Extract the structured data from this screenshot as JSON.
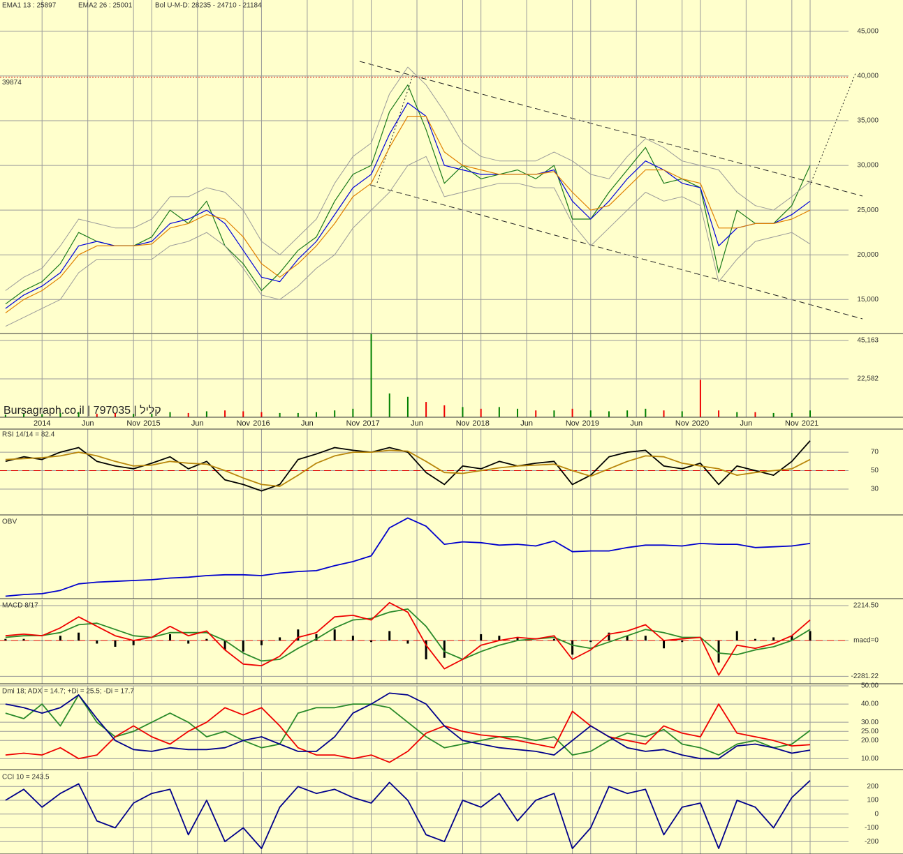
{
  "chart_data": [
    {
      "type": "line",
      "x": [
        -4,
        -2,
        0,
        2,
        4,
        6,
        8,
        10,
        12,
        14,
        16,
        18,
        20,
        22,
        24,
        26,
        28,
        30,
        32,
        34,
        36,
        38,
        40,
        42,
        44,
        46,
        48,
        50,
        52,
        54,
        56,
        58,
        60,
        62,
        64,
        66,
        68,
        70,
        72,
        74,
        76,
        78,
        80,
        82,
        84
      ],
      "xlim": [
        -4.6,
        88.2
      ],
      "xticks": [
        {
          "value": 0,
          "label": "2014"
        },
        {
          "value": 5,
          "label": "Jun"
        },
        {
          "value": 10,
          "label": "Nov"
        },
        {
          "value": 12,
          "label": "2015"
        },
        {
          "value": 17,
          "label": "Jun"
        },
        {
          "value": 22,
          "label": "Nov"
        },
        {
          "value": 24,
          "label": "2016"
        },
        {
          "value": 29,
          "label": "Jun"
        },
        {
          "value": 34,
          "label": "Nov"
        },
        {
          "value": 36,
          "label": "2017"
        },
        {
          "value": 41,
          "label": "Jun"
        },
        {
          "value": 46,
          "label": "Nov"
        },
        {
          "value": 48,
          "label": "2018"
        },
        {
          "value": 53,
          "label": "Jun"
        },
        {
          "value": 58,
          "label": "Nov"
        },
        {
          "value": 60,
          "label": "2019"
        },
        {
          "value": 65,
          "label": "Jun"
        },
        {
          "value": 70,
          "label": "Nov"
        },
        {
          "value": 72,
          "label": "2020"
        },
        {
          "value": 77,
          "label": "Jun"
        },
        {
          "value": 82,
          "label": "Nov"
        },
        {
          "value": 84,
          "label": "2021"
        }
      ],
      "ylim": [
        11200,
        48500
      ],
      "yticks": [
        {
          "value": 15000,
          "label": "15,000"
        },
        {
          "value": 20000,
          "label": "20,000"
        },
        {
          "value": 25000,
          "label": "25,000"
        },
        {
          "value": 30000,
          "label": "30,000"
        },
        {
          "value": 35000,
          "label": "35,000"
        },
        {
          "value": 40000,
          "label": "40,000"
        },
        {
          "value": 45000,
          "label": "45,000"
        }
      ],
      "reference_line": 39874,
      "watermark": "Bursagraph.co.il | 797035 | קליל",
      "series": [
        {
          "color": "#1a7a1a",
          "values": [
            14500,
            16000,
            17000,
            19000,
            22500,
            21500,
            21000,
            21000,
            22000,
            25000,
            23500,
            26000,
            21000,
            19000,
            16000,
            18000,
            20500,
            22000,
            26000,
            29000,
            30000,
            36000,
            39000,
            34000,
            28000,
            30000,
            28500,
            29000,
            29500,
            28500,
            30000,
            24000,
            24000,
            27000,
            29500,
            32000,
            28000,
            28500,
            27500,
            18000,
            25000,
            23500,
            23500,
            25500,
            30000
          ]
        },
        {
          "name": "EMA1 13 : 25897",
          "color": "#0000dd",
          "values": [
            14000,
            15500,
            16500,
            18000,
            21000,
            21500,
            21000,
            21000,
            21500,
            23500,
            24000,
            25000,
            23500,
            20500,
            17500,
            17000,
            19500,
            21500,
            24500,
            27500,
            29000,
            33500,
            37000,
            35500,
            30000,
            29500,
            29000,
            29000,
            29000,
            29000,
            29500,
            26000,
            24000,
            26000,
            28500,
            30500,
            29500,
            28000,
            27500,
            21000,
            23000,
            23500,
            23500,
            24500,
            26000
          ]
        },
        {
          "name": "EMA2 26 : 25001",
          "color": "#e08000",
          "values": [
            13500,
            15000,
            16000,
            17500,
            20000,
            21000,
            21000,
            21000,
            21200,
            23000,
            23500,
            24500,
            24000,
            22000,
            19000,
            17500,
            19000,
            21000,
            23500,
            26500,
            28000,
            32000,
            35500,
            35500,
            31500,
            30000,
            29500,
            29000,
            29000,
            29000,
            29300,
            27000,
            25000,
            25500,
            27500,
            29500,
            29500,
            28500,
            28000,
            23000,
            23000,
            23500,
            23500,
            24000,
            25000
          ]
        },
        {
          "name": "Bol U-M-D: 28235 - 24710 - 21184",
          "color": "#9a9a9a",
          "upper": [
            16000,
            17500,
            18500,
            21000,
            24000,
            23500,
            23000,
            23000,
            24000,
            26500,
            26500,
            27500,
            27000,
            25000,
            21500,
            20000,
            22000,
            24000,
            28000,
            31000,
            32500,
            38000,
            41000,
            39000,
            36000,
            32500,
            31000,
            30500,
            30500,
            30500,
            31500,
            30500,
            29000,
            28500,
            31000,
            33000,
            32000,
            30500,
            30000,
            29500,
            27000,
            25500,
            25000,
            26500,
            28200
          ],
          "lower": [
            12000,
            13000,
            14000,
            15000,
            18000,
            19500,
            19500,
            19500,
            19500,
            21000,
            21500,
            22500,
            21000,
            18500,
            15500,
            15000,
            16500,
            18500,
            20000,
            23000,
            25000,
            27000,
            30000,
            31000,
            26500,
            27000,
            27500,
            28000,
            28000,
            27500,
            27500,
            23500,
            21000,
            23000,
            25000,
            27000,
            26000,
            26500,
            25500,
            17000,
            19500,
            21500,
            22000,
            22500,
            21200
          ]
        }
      ]
    },
    {
      "type": "bar",
      "ylim": [
        0,
        49270
      ],
      "yticks": [
        {
          "value": 22582,
          "label": "22,582"
        },
        {
          "value": 45163,
          "label": "45,163"
        }
      ],
      "up_color": "#008000",
      "down_color": "#ee0000",
      "values": [
        1500,
        2000,
        1800,
        2500,
        3000,
        2000,
        2500,
        2000,
        2000,
        3000,
        2500,
        3500,
        4000,
        3500,
        3000,
        2500,
        2500,
        3000,
        4000,
        5000,
        49000,
        14000,
        12000,
        9000,
        7000,
        6000,
        5000,
        6000,
        5000,
        4000,
        4000,
        5000,
        4000,
        3500,
        4000,
        5000,
        4000,
        3500,
        22000,
        4000,
        3000,
        3000,
        2500,
        2500,
        4000
      ]
    },
    {
      "type": "line",
      "title": "RSI 14/14 = 82.4",
      "ylim": [
        2,
        95
      ],
      "yticks": [
        30,
        50,
        70
      ],
      "reference_line": 50,
      "series": [
        {
          "color": "#000000",
          "values": [
            60,
            65,
            62,
            70,
            75,
            60,
            55,
            52,
            58,
            65,
            52,
            60,
            40,
            35,
            28,
            35,
            62,
            68,
            75,
            72,
            70,
            75,
            70,
            48,
            35,
            55,
            52,
            60,
            55,
            58,
            60,
            35,
            45,
            65,
            70,
            72,
            55,
            52,
            58,
            35,
            55,
            50,
            45,
            60,
            82.4
          ]
        },
        {
          "color": "#b8860b",
          "values": [
            62,
            63,
            64,
            66,
            70,
            66,
            60,
            55,
            56,
            60,
            58,
            57,
            50,
            42,
            35,
            33,
            45,
            58,
            66,
            70,
            70,
            72,
            71,
            60,
            48,
            47,
            50,
            53,
            55,
            56,
            57,
            50,
            44,
            52,
            60,
            66,
            65,
            58,
            55,
            52,
            45,
            48,
            50,
            52,
            62
          ]
        }
      ]
    },
    {
      "type": "line",
      "title": "OBV",
      "ylim": [
        0,
        100
      ],
      "series": [
        {
          "color": "#0000cc",
          "values": [
            3,
            5,
            6,
            10,
            18,
            20,
            21,
            22,
            23,
            25,
            26,
            28,
            29,
            29,
            28,
            31,
            33,
            34,
            40,
            45,
            52,
            86,
            98,
            88,
            66,
            69,
            68,
            65,
            66,
            64,
            70,
            57,
            58,
            58,
            62,
            65,
            65,
            64,
            67,
            66,
            66,
            62,
            63,
            64,
            67
          ]
        }
      ]
    },
    {
      "type": "line",
      "title": "MACD 8/17",
      "ylim": [
        -2750,
        2570
      ],
      "yticks": [
        {
          "value": 2214.5,
          "label": "2214.50"
        },
        {
          "value": 0,
          "label": "macd=0"
        },
        -2281.22
      ],
      "reference_line": 0,
      "series": [
        {
          "style": "bar",
          "color": "#000000",
          "values": [
            100,
            100,
            -20,
            300,
            500,
            -200,
            -400,
            -300,
            0,
            400,
            -200,
            100,
            -600,
            -700,
            -300,
            200,
            700,
            400,
            700,
            300,
            -100,
            600,
            -200,
            -1200,
            -1100,
            0,
            400,
            300,
            200,
            0,
            100,
            -900,
            -100,
            500,
            300,
            300,
            -500,
            -100,
            0,
            -1400,
            600,
            100,
            200,
            300,
            600
          ]
        },
        {
          "color": "#2a8a2a",
          "values": [
            200,
            300,
            320,
            500,
            1000,
            1100,
            700,
            300,
            200,
            500,
            500,
            500,
            0,
            -800,
            -1300,
            -1200,
            -500,
            100,
            800,
            1300,
            1400,
            1800,
            2000,
            900,
            -700,
            -1200,
            -700,
            -300,
            0,
            100,
            200,
            -300,
            -500,
            -100,
            300,
            700,
            500,
            200,
            200,
            -800,
            -900,
            -600,
            -400,
            0,
            700
          ]
        },
        {
          "color": "#ee0000",
          "values": [
            300,
            400,
            300,
            800,
            1500,
            900,
            300,
            0,
            200,
            900,
            300,
            600,
            -600,
            -1500,
            -1600,
            -1000,
            200,
            500,
            1500,
            1600,
            1300,
            2400,
            1800,
            -300,
            -1800,
            -1200,
            -300,
            0,
            200,
            100,
            300,
            -1200,
            -600,
            400,
            600,
            1000,
            0,
            100,
            200,
            -2200,
            -300,
            -500,
            -200,
            300,
            1300
          ]
        }
      ]
    },
    {
      "type": "line",
      "title": "Dmi 18; ADX = 14.7; +Di = 25.5; -Di = 17.7",
      "ylim": [
        4,
        50
      ],
      "yticks": [
        {
          "value": 10,
          "label": "10.00"
        },
        {
          "value": 20,
          "label": "20.00"
        },
        {
          "value": 25,
          "label": "25.00"
        },
        {
          "value": 30,
          "label": "30.00"
        },
        {
          "value": 40,
          "label": "40.00"
        },
        {
          "value": 50,
          "label": "50.00"
        }
      ],
      "series": [
        {
          "color": "#2a8a2a",
          "values": [
            35,
            32,
            40,
            28,
            45,
            30,
            22,
            25,
            30,
            35,
            30,
            22,
            25,
            20,
            16,
            18,
            35,
            38,
            38,
            40,
            40,
            38,
            30,
            22,
            16,
            18,
            20,
            22,
            22,
            20,
            22,
            12,
            14,
            20,
            24,
            22,
            26,
            18,
            16,
            12,
            18,
            20,
            16,
            18,
            25.5
          ]
        },
        {
          "color": "#ee0000",
          "values": [
            12,
            13,
            12,
            16,
            10,
            12,
            22,
            28,
            22,
            18,
            25,
            30,
            38,
            34,
            38,
            28,
            16,
            12,
            12,
            10,
            12,
            8,
            14,
            24,
            28,
            25,
            23,
            22,
            20,
            18,
            16,
            36,
            28,
            22,
            20,
            18,
            28,
            24,
            22,
            40,
            24,
            22,
            20,
            17,
            17.7
          ]
        },
        {
          "color": "#00008b",
          "values": [
            40,
            38,
            35,
            38,
            45,
            32,
            20,
            15,
            14,
            16,
            15,
            15,
            16,
            20,
            22,
            18,
            14,
            14,
            22,
            35,
            40,
            46,
            45,
            40,
            28,
            20,
            18,
            16,
            15,
            14,
            12,
            20,
            28,
            22,
            16,
            14,
            15,
            12,
            10,
            10,
            17,
            18,
            16,
            13,
            14.7
          ]
        }
      ]
    },
    {
      "type": "line",
      "title": "CCI 10 = 243.5",
      "ylim": [
        -290,
        308
      ],
      "yticks": [
        -200,
        -100,
        0,
        100,
        200
      ],
      "series": [
        {
          "color": "#00008b",
          "values": [
            100,
            180,
            50,
            150,
            220,
            -50,
            -100,
            80,
            150,
            180,
            -150,
            100,
            -200,
            -100,
            -250,
            50,
            200,
            150,
            180,
            120,
            80,
            230,
            100,
            -150,
            -200,
            100,
            50,
            150,
            -50,
            100,
            150,
            -250,
            -100,
            200,
            150,
            180,
            -150,
            50,
            80,
            -250,
            100,
            50,
            -100,
            120,
            243.5
          ]
        }
      ]
    }
  ]
}
